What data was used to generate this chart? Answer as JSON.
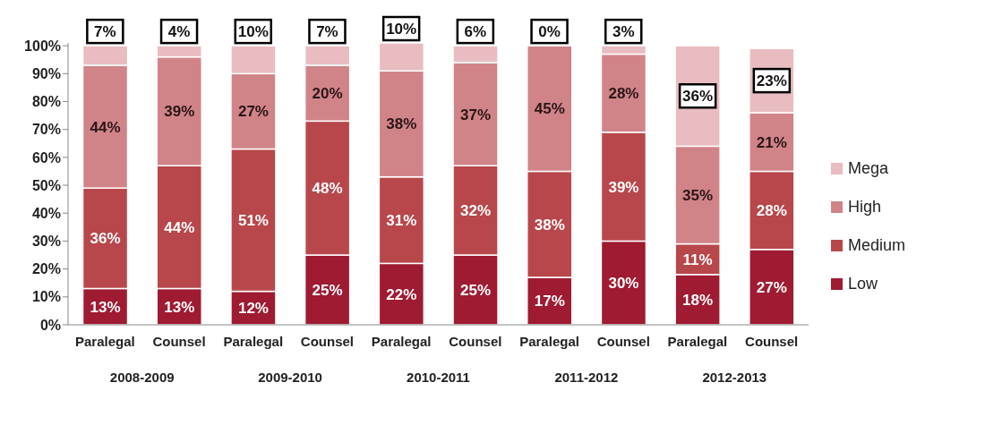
{
  "chart_data": {
    "type": "bar",
    "stacked": true,
    "categories": [
      "Paralegal",
      "Counsel",
      "Paralegal",
      "Counsel",
      "Paralegal",
      "Counsel",
      "Paralegal",
      "Counsel",
      "Paralegal",
      "Counsel"
    ],
    "annotations": [
      "2008-2009",
      "2009-2010",
      "2010-2011",
      "2011-2012",
      "2012-2013"
    ],
    "series": [
      {
        "name": "Low",
        "color": "#9e1b32",
        "values": [
          13,
          13,
          12,
          25,
          22,
          25,
          17,
          30,
          18,
          27
        ],
        "value_labels": [
          "13%",
          "13%",
          "12%",
          "25%",
          "22%",
          "25%",
          "17%",
          "30%",
          "18%",
          "27%"
        ]
      },
      {
        "name": "Medium",
        "color": "#b8474b",
        "values": [
          36,
          44,
          51,
          48,
          31,
          32,
          38,
          39,
          11,
          28
        ],
        "value_labels": [
          "36%",
          "44%",
          "51%",
          "48%",
          "31%",
          "32%",
          "38%",
          "39%",
          "11%",
          "28%"
        ]
      },
      {
        "name": "High",
        "color": "#d08488",
        "values": [
          44,
          39,
          27,
          20,
          38,
          37,
          45,
          28,
          35,
          21
        ],
        "value_labels": [
          "44%",
          "39%",
          "27%",
          "20%",
          "38%",
          "37%",
          "45%",
          "28%",
          "35%",
          "21%"
        ]
      },
      {
        "name": "Mega",
        "color": "#e8bcc0",
        "values": [
          7,
          4,
          10,
          7,
          10,
          6,
          0,
          3,
          36,
          23
        ],
        "value_labels": [
          "7%",
          "4%",
          "10%",
          "7%",
          "10%",
          "6%",
          "0%",
          "3%",
          "36%",
          "23%"
        ]
      }
    ],
    "ylim": [
      0,
      101
    ],
    "yticks": [
      {
        "value": 0,
        "label": "0%"
      },
      {
        "value": 10,
        "label": "10%"
      },
      {
        "value": 20,
        "label": "20%"
      },
      {
        "value": 30,
        "label": "30%"
      },
      {
        "value": 40,
        "label": "40%"
      },
      {
        "value": 50,
        "label": "50%"
      },
      {
        "value": 60,
        "label": "60%"
      },
      {
        "value": 70,
        "label": "70%"
      },
      {
        "value": 80,
        "label": "80%"
      },
      {
        "value": 90,
        "label": "90%"
      },
      {
        "value": 100,
        "label": "100%"
      }
    ],
    "grid": false,
    "legend": "right"
  }
}
